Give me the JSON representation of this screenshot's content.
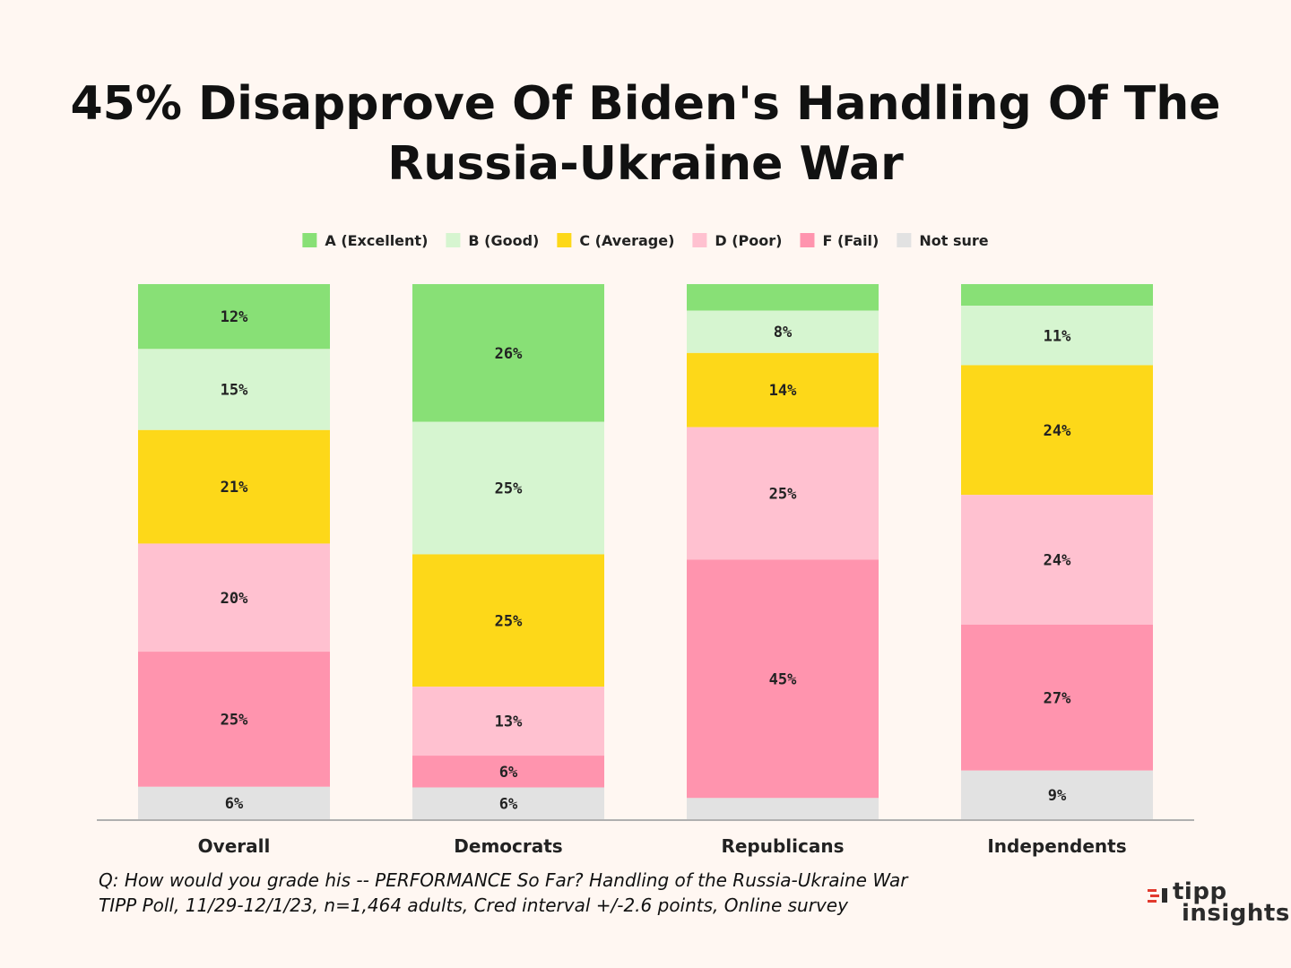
{
  "chart_data": {
    "type": "bar",
    "stacked": true,
    "title_lines": [
      "45% Disapprove Of Biden's Handling Of The",
      "Russia-Ukraine War"
    ],
    "categories": [
      "Overall",
      "Democrats",
      "Republicans",
      "Independents"
    ],
    "series": [
      {
        "name": "A (Excellent)",
        "color": "#88e076",
        "values": [
          12,
          26,
          5,
          4
        ],
        "labels": [
          "12%",
          "26%",
          "",
          ""
        ]
      },
      {
        "name": "B (Good)",
        "color": "#d6f5d0",
        "values": [
          15,
          25,
          8,
          11
        ],
        "labels": [
          "15%",
          "25%",
          "8%",
          "11%"
        ]
      },
      {
        "name": "C (Average)",
        "color": "#fdd819",
        "values": [
          21,
          25,
          14,
          24
        ],
        "labels": [
          "21%",
          "25%",
          "14%",
          "24%"
        ]
      },
      {
        "name": "D (Poor)",
        "color": "#ffc1d0",
        "values": [
          20,
          13,
          25,
          24
        ],
        "labels": [
          "20%",
          "13%",
          "25%",
          "24%"
        ]
      },
      {
        "name": "F (Fail)",
        "color": "#ff94ae",
        "values": [
          25,
          6,
          45,
          27
        ],
        "labels": [
          "25%",
          "6%",
          "45%",
          "27%"
        ]
      },
      {
        "name": "Not sure",
        "color": "#e2e2e2",
        "values": [
          6,
          6,
          4,
          9
        ],
        "labels": [
          "6%",
          "6%",
          "",
          "9%"
        ]
      }
    ],
    "legend_position": "top",
    "axis_color": "#b0b0b0"
  },
  "footnote": {
    "line1": "Q:  How would you grade his -- PERFORMANCE So Far?  Handling of the Russia-Ukraine War",
    "line2": "TIPP Poll, 11/29-12/1/23, n=1,464 adults, Cred interval +/-2.6 points, Online survey"
  },
  "logo": {
    "word1": "tipp",
    "word2": "insights",
    "accent_color": "#e23a2e"
  }
}
